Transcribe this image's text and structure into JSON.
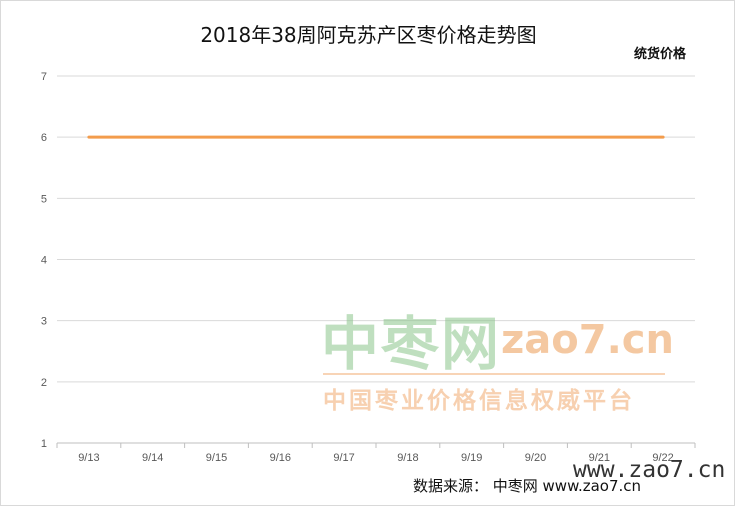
{
  "chart_data": {
    "type": "line",
    "title": "2018年38周阿克苏产区枣价格走势图",
    "categories": [
      "9/13",
      "9/14",
      "9/15",
      "9/16",
      "9/17",
      "9/18",
      "9/19",
      "9/20",
      "9/21",
      "9/22"
    ],
    "series": [
      {
        "name": "统货价格",
        "values": [
          6,
          6,
          6,
          6,
          6,
          6,
          6,
          6,
          6,
          6
        ],
        "color": "#f39c4c"
      }
    ],
    "ylim": [
      1,
      7
    ],
    "yticks": [
      "1",
      "2",
      "3",
      "4",
      "5",
      "6",
      "7"
    ],
    "grid": true,
    "legend_position": "top-right"
  },
  "watermark": {
    "brand": "中枣网",
    "url": "zao7.cn",
    "slogan": "中国枣业价格信息权威平台",
    "url_bottom": "www.zao7.cn"
  },
  "source": "数据来源：  中枣网 www.zao7.cn"
}
